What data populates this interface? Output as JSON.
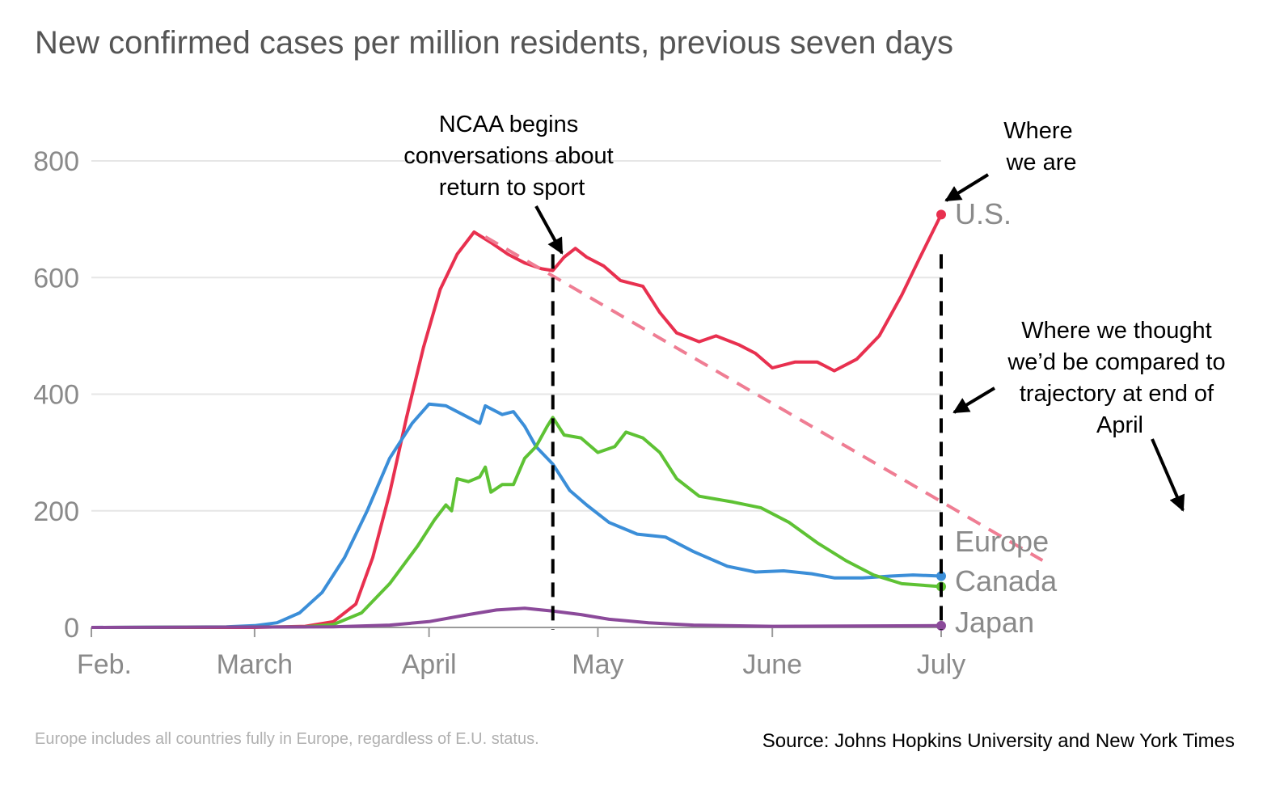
{
  "chart_data": {
    "type": "line",
    "title": "New confirmed cases per million residents, previous seven days",
    "xlabel": "",
    "ylabel": "",
    "x_ticks": [
      "Feb.",
      "March",
      "April",
      "May",
      "June",
      "July"
    ],
    "y_ticks": [
      0,
      200,
      400,
      600,
      800
    ],
    "ylim": [
      0,
      800
    ],
    "xlim": [
      "2020-02-01",
      "2020-07-01"
    ],
    "grid": true,
    "series": [
      {
        "name": "U.S.",
        "color": "#e8304f",
        "points": [
          [
            "2020-02-01",
            0
          ],
          [
            "2020-03-01",
            0
          ],
          [
            "2020-03-10",
            2
          ],
          [
            "2020-03-15",
            10
          ],
          [
            "2020-03-19",
            40
          ],
          [
            "2020-03-22",
            120
          ],
          [
            "2020-03-25",
            230
          ],
          [
            "2020-03-28",
            360
          ],
          [
            "2020-03-31",
            480
          ],
          [
            "2020-04-03",
            580
          ],
          [
            "2020-04-06",
            640
          ],
          [
            "2020-04-09",
            678
          ],
          [
            "2020-04-12",
            660
          ],
          [
            "2020-04-15",
            640
          ],
          [
            "2020-04-18",
            625
          ],
          [
            "2020-04-21",
            615
          ],
          [
            "2020-04-23",
            612
          ],
          [
            "2020-04-25",
            635
          ],
          [
            "2020-04-27",
            650
          ],
          [
            "2020-04-29",
            635
          ],
          [
            "2020-05-02",
            620
          ],
          [
            "2020-05-05",
            595
          ],
          [
            "2020-05-09",
            585
          ],
          [
            "2020-05-12",
            540
          ],
          [
            "2020-05-15",
            505
          ],
          [
            "2020-05-19",
            490
          ],
          [
            "2020-05-22",
            500
          ],
          [
            "2020-05-26",
            485
          ],
          [
            "2020-05-29",
            470
          ],
          [
            "2020-06-01",
            445
          ],
          [
            "2020-06-05",
            455
          ],
          [
            "2020-06-09",
            455
          ],
          [
            "2020-06-12",
            440
          ],
          [
            "2020-06-16",
            460
          ],
          [
            "2020-06-20",
            500
          ],
          [
            "2020-06-24",
            570
          ],
          [
            "2020-06-27",
            630
          ],
          [
            "2020-07-01",
            708
          ]
        ]
      },
      {
        "name": "Europe",
        "color": "#3b8ed8",
        "points": [
          [
            "2020-02-01",
            0
          ],
          [
            "2020-02-25",
            1
          ],
          [
            "2020-03-01",
            3
          ],
          [
            "2020-03-05",
            8
          ],
          [
            "2020-03-09",
            25
          ],
          [
            "2020-03-13",
            60
          ],
          [
            "2020-03-17",
            120
          ],
          [
            "2020-03-21",
            200
          ],
          [
            "2020-03-25",
            290
          ],
          [
            "2020-03-29",
            350
          ],
          [
            "2020-04-01",
            383
          ],
          [
            "2020-04-04",
            380
          ],
          [
            "2020-04-07",
            365
          ],
          [
            "2020-04-10",
            350
          ],
          [
            "2020-04-11",
            380
          ],
          [
            "2020-04-14",
            365
          ],
          [
            "2020-04-16",
            370
          ],
          [
            "2020-04-18",
            345
          ],
          [
            "2020-04-20",
            310
          ],
          [
            "2020-04-23",
            280
          ],
          [
            "2020-04-26",
            235
          ],
          [
            "2020-04-29",
            210
          ],
          [
            "2020-05-03",
            180
          ],
          [
            "2020-05-08",
            160
          ],
          [
            "2020-05-13",
            155
          ],
          [
            "2020-05-18",
            130
          ],
          [
            "2020-05-24",
            105
          ],
          [
            "2020-05-29",
            95
          ],
          [
            "2020-06-03",
            97
          ],
          [
            "2020-06-08",
            92
          ],
          [
            "2020-06-12",
            85
          ],
          [
            "2020-06-17",
            85
          ],
          [
            "2020-06-22",
            88
          ],
          [
            "2020-06-26",
            90
          ],
          [
            "2020-07-01",
            88
          ]
        ]
      },
      {
        "name": "Canada",
        "color": "#5ec234",
        "points": [
          [
            "2020-02-01",
            0
          ],
          [
            "2020-03-10",
            1
          ],
          [
            "2020-03-15",
            5
          ],
          [
            "2020-03-20",
            25
          ],
          [
            "2020-03-25",
            75
          ],
          [
            "2020-03-30",
            140
          ],
          [
            "2020-04-02",
            185
          ],
          [
            "2020-04-04",
            210
          ],
          [
            "2020-04-05",
            200
          ],
          [
            "2020-04-06",
            255
          ],
          [
            "2020-04-08",
            250
          ],
          [
            "2020-04-10",
            258
          ],
          [
            "2020-04-11",
            275
          ],
          [
            "2020-04-12",
            232
          ],
          [
            "2020-04-14",
            245
          ],
          [
            "2020-04-16",
            245
          ],
          [
            "2020-04-18",
            290
          ],
          [
            "2020-04-20",
            310
          ],
          [
            "2020-04-22",
            345
          ],
          [
            "2020-04-23",
            360
          ],
          [
            "2020-04-25",
            330
          ],
          [
            "2020-04-28",
            325
          ],
          [
            "2020-05-01",
            300
          ],
          [
            "2020-05-04",
            310
          ],
          [
            "2020-05-06",
            335
          ],
          [
            "2020-05-09",
            325
          ],
          [
            "2020-05-12",
            300
          ],
          [
            "2020-05-15",
            255
          ],
          [
            "2020-05-19",
            225
          ],
          [
            "2020-05-25",
            215
          ],
          [
            "2020-05-30",
            205
          ],
          [
            "2020-06-04",
            180
          ],
          [
            "2020-06-09",
            145
          ],
          [
            "2020-06-14",
            115
          ],
          [
            "2020-06-19",
            90
          ],
          [
            "2020-06-24",
            75
          ],
          [
            "2020-07-01",
            70
          ]
        ]
      },
      {
        "name": "Japan",
        "color": "#8b4a9a",
        "points": [
          [
            "2020-02-01",
            0
          ],
          [
            "2020-03-15",
            1
          ],
          [
            "2020-03-25",
            4
          ],
          [
            "2020-04-01",
            10
          ],
          [
            "2020-04-08",
            22
          ],
          [
            "2020-04-13",
            30
          ],
          [
            "2020-04-18",
            33
          ],
          [
            "2020-04-23",
            28
          ],
          [
            "2020-04-28",
            22
          ],
          [
            "2020-05-03",
            14
          ],
          [
            "2020-05-10",
            8
          ],
          [
            "2020-05-18",
            4
          ],
          [
            "2020-06-01",
            2
          ],
          [
            "2020-07-01",
            3
          ]
        ]
      },
      {
        "name": "",
        "style": "dashed",
        "color": "#ef7d93",
        "points": [
          [
            "2020-04-11",
            670
          ],
          [
            "2020-07-19",
            115
          ]
        ]
      }
    ],
    "markers": [
      {
        "date": "2020-04-23",
        "style": "dashed-vertical"
      },
      {
        "date": "2020-07-01",
        "style": "dashed-vertical"
      }
    ],
    "annotations": [
      {
        "lines": [
          "NCAA begins",
          "conversations about",
          "return to sport"
        ]
      },
      {
        "lines": [
          "Where",
          "we are"
        ]
      },
      {
        "lines": [
          "Where we thought",
          "we’d be compared to",
          "trajectory at end of",
          "April"
        ]
      }
    ],
    "note": "Europe includes all countries fully in Europe, regardless of E.U. status.",
    "source": "Source: Johns Hopkins University and New York Times"
  }
}
